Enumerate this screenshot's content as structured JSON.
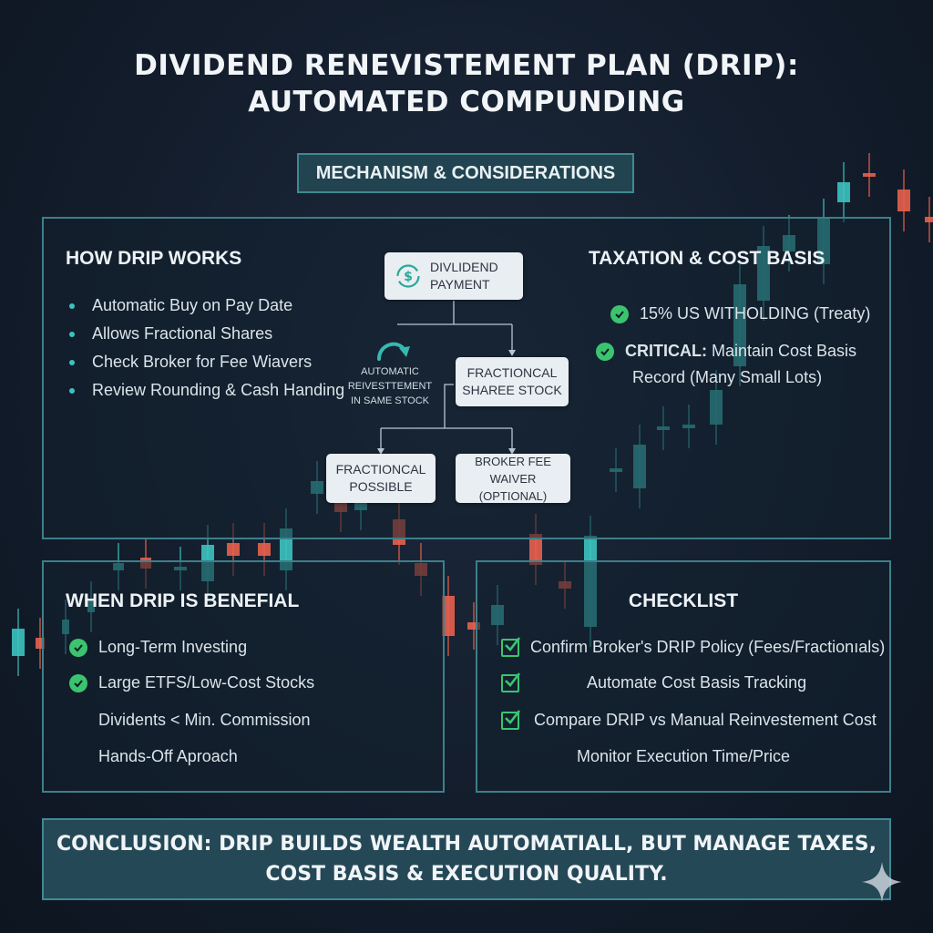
{
  "title": {
    "line1": "DIVIDEND RENEVISTEMENT PLAN (DRIP):",
    "line2": "AUTOMATED COMPUNDING"
  },
  "subtitle": "MECHANISM & CONSIDERATIONS",
  "how_drip_works": {
    "heading": "HOW DRIP WORKS",
    "items": [
      "Automatic Buy on Pay Date",
      "Allows Fractional Shares",
      "Check Broker for Fee Wiavers",
      "Review Rounding & Cash Handing"
    ]
  },
  "flow": {
    "dividend_line1": "DIVLIDEND",
    "dividend_line2": "PAYMENT",
    "auto_line1": "AUTOMATIC",
    "auto_line2": "REIVESTTEMENT",
    "auto_line3": "IN SAME STOCK",
    "fractional_share_line1": "FRACTIONCAL",
    "fractional_share_line2": "SHAREE STOCK",
    "fractional_possible_line1": "FRACTIONCAL",
    "fractional_possible_line2": "POSSIBLE",
    "broker_line1": "BROKER FEE WAIVER",
    "broker_line2": "(OPTIONAL)"
  },
  "taxation": {
    "heading": "TAXATION & COST BASIS",
    "item1": "15% US WITHOLDING (Treaty)",
    "item2_bold": "CRITICAL:",
    "item2_rest": " Maintain Cost Basis",
    "item2_line2": "Record (Many Small Lots)"
  },
  "when_beneficial": {
    "heading": "WHEN DRIP IS BENEFIAL",
    "checked": [
      "Long-Term Investing",
      "Large ETFS/Low-Cost Stocks"
    ],
    "plain": [
      "Dividents < Min. Commission",
      "Hands-Off Aproach"
    ]
  },
  "checklist": {
    "heading": "CHECKLIST",
    "checked": [
      "Confirm Broker's DRIP Policy (Fees/Fractionıals)",
      "Automate Cost Basis Tracking",
      "Compare DRIP vs Manual Reinvestement Cost"
    ],
    "plain": "Monitor Execution Time/Price"
  },
  "conclusion": {
    "line1": "CONCLUSION: DRIP BUILDS WEALTH AUTOMATIALL, BUT MANAGE TAXES,",
    "line2": "COST BASIS & EXECUTION QUALITY."
  },
  "colors": {
    "teal": "#3cc3c0",
    "red": "#e8604c",
    "green_check": "#3bc46f",
    "panel_border": "#3d7f8a"
  },
  "icons": {
    "dividend": "dollar-cycle-icon",
    "reinvest": "curved-arrow-icon",
    "check": "check-circle-icon",
    "checkbox": "checkbox-checked-icon",
    "watermark": "sparkle-icon"
  }
}
